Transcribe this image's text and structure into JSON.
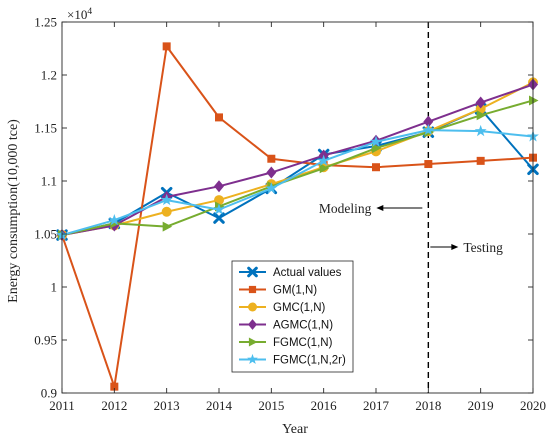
{
  "chart_data": {
    "type": "line",
    "title": "",
    "xlabel": "Year",
    "ylabel": "Energy consumption(10,000 tce)",
    "exponent_label": "×10",
    "exponent_power": "4",
    "x": [
      2011,
      2012,
      2013,
      2014,
      2015,
      2016,
      2017,
      2018,
      2019,
      2020
    ],
    "x_tick_labels": [
      "2011",
      "2012",
      "2013",
      "2014",
      "2015",
      "2016",
      "2017",
      "2018",
      "2019",
      "2020"
    ],
    "xlim": [
      2011,
      2020
    ],
    "ylim": [
      0.9,
      1.25
    ],
    "y_ticks": [
      0.9,
      0.95,
      1.0,
      1.05,
      1.1,
      1.15,
      1.2,
      1.25
    ],
    "y_tick_labels": [
      "0.9",
      "0.95",
      "1",
      "1.05",
      "1.1",
      "1.15",
      "1.2",
      "1.25"
    ],
    "grid": false,
    "legend_placement": "lower-middle",
    "series": [
      {
        "name": "Actual values",
        "color": "#0072BD",
        "marker": "x-cross",
        "values": [
          1.049,
          1.06,
          1.089,
          1.065,
          1.093,
          1.125,
          1.133,
          1.146,
          1.168,
          1.111
        ]
      },
      {
        "name": "GM(1,N)",
        "color": "#D95319",
        "marker": "square",
        "values": [
          1.049,
          0.906,
          1.227,
          1.16,
          1.121,
          1.115,
          1.113,
          1.116,
          1.119,
          1.122
        ]
      },
      {
        "name": "GMC(1,N)",
        "color": "#EDB120",
        "marker": "circle",
        "values": [
          1.049,
          1.058,
          1.071,
          1.082,
          1.097,
          1.113,
          1.128,
          1.147,
          1.168,
          1.193
        ]
      },
      {
        "name": "AGMC(1,N)",
        "color": "#7E2F8E",
        "marker": "diamond",
        "values": [
          1.049,
          1.058,
          1.085,
          1.095,
          1.108,
          1.124,
          1.138,
          1.156,
          1.174,
          1.191
        ]
      },
      {
        "name": "FGMC(1,N)",
        "color": "#77AC30",
        "marker": "triangle-right",
        "values": [
          1.049,
          1.06,
          1.057,
          1.076,
          1.095,
          1.112,
          1.131,
          1.146,
          1.162,
          1.176
        ]
      },
      {
        "name": "FGMC(1,N,2r)",
        "color": "#4DBEEE",
        "marker": "star",
        "values": [
          1.049,
          1.063,
          1.082,
          1.073,
          1.093,
          1.119,
          1.137,
          1.148,
          1.147,
          1.142
        ]
      }
    ],
    "divider": {
      "x": 2018,
      "style": "dashed",
      "color": "#000000"
    },
    "annotations": [
      {
        "text": "Modeling",
        "arrow": "left"
      },
      {
        "text": "Testing",
        "arrow": "right"
      }
    ]
  }
}
